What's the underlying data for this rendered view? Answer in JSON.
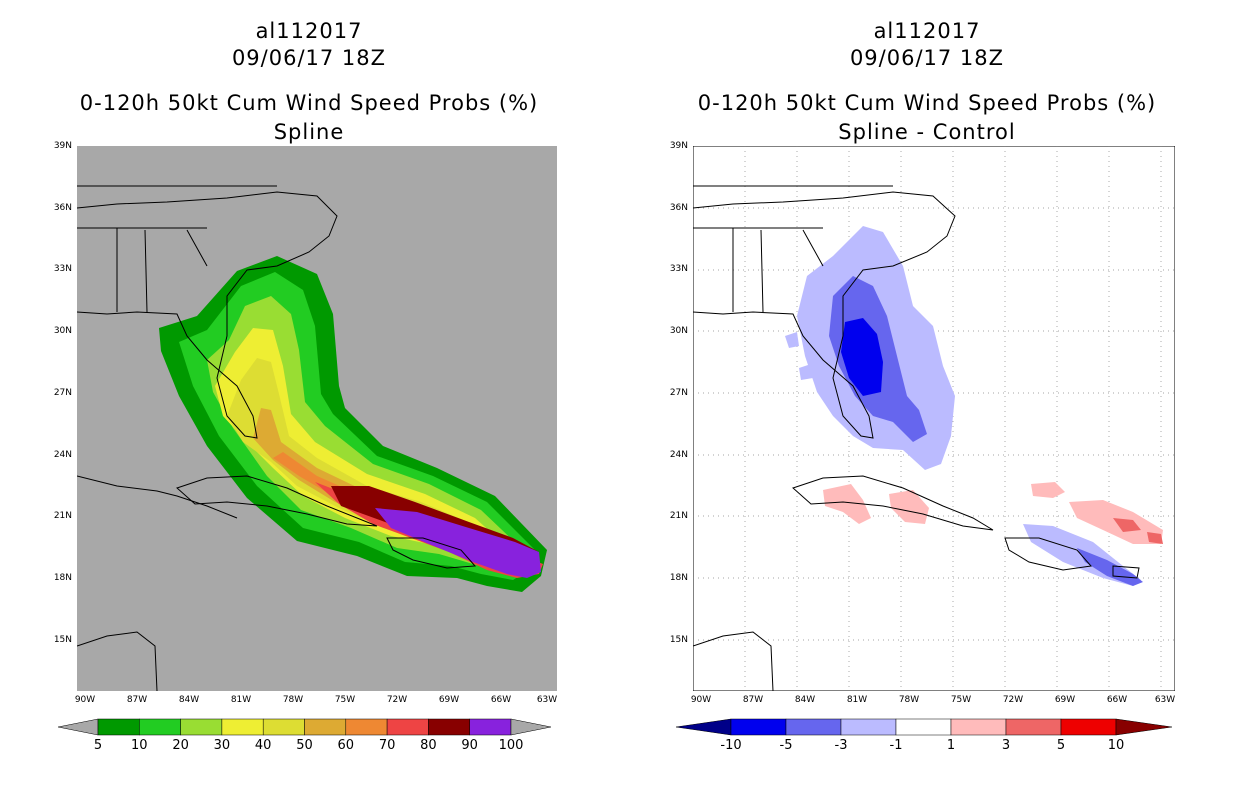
{
  "left_panel": {
    "storm_id": "al112017",
    "datetime": "09/06/17 18Z",
    "product": "0-120h 50kt Cum Wind Speed Probs (%)",
    "subtitle": "Spline",
    "colorbar": {
      "ticks": [
        "5",
        "10",
        "20",
        "30",
        "40",
        "50",
        "60",
        "70",
        "80",
        "90",
        "100"
      ],
      "colors": [
        "#009900",
        "#22cc22",
        "#99dd33",
        "#eeee33",
        "#dddd33",
        "#ddaa33",
        "#ee8833",
        "#ee4444",
        "#880000",
        "#8822dd"
      ],
      "end_color": "#a8a8a8"
    },
    "background_color": "#a8a8a8"
  },
  "right_panel": {
    "storm_id": "al112017",
    "datetime": "09/06/17 18Z",
    "product": "0-120h 50kt Cum Wind Speed Probs (%)",
    "subtitle": "Spline - Control",
    "colorbar": {
      "ticks": [
        "-10",
        "-5",
        "-3",
        "-1",
        "1",
        "3",
        "5",
        "10"
      ],
      "colors": [
        "#0000ee",
        "#6666ee",
        "#bbbbff",
        "#ffffff",
        "#ffbbbb",
        "#ee6666",
        "#ee0000"
      ],
      "left_end_color": "#000088",
      "right_end_color": "#880000"
    }
  },
  "axes": {
    "lat_labels": [
      "39N",
      "36N",
      "33N",
      "30N",
      "27N",
      "24N",
      "21N",
      "18N",
      "15N"
    ],
    "lon_labels": [
      "90W",
      "87W",
      "84W",
      "81W",
      "78W",
      "75W",
      "72W",
      "69W",
      "66W",
      "63W"
    ]
  }
}
